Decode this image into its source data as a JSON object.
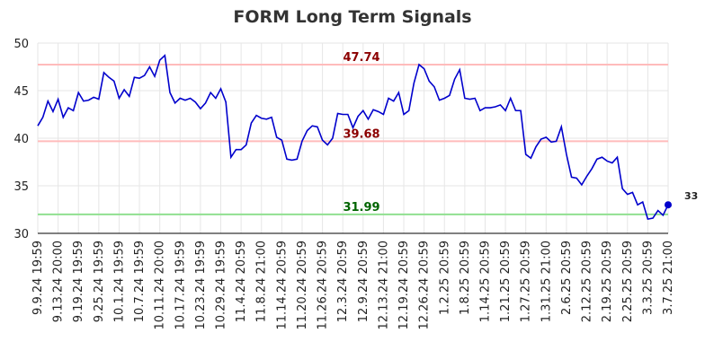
{
  "chart_data": {
    "type": "line",
    "title": "FORM Long Term Signals",
    "categories": [
      "9.9.24 19:59",
      null,
      null,
      null,
      "9.13.24 20:00",
      null,
      null,
      null,
      "9.19.24 19:59",
      null,
      null,
      null,
      "9.25.24 19:59",
      null,
      null,
      null,
      "10.1.24 19:59",
      null,
      null,
      null,
      "10.7.24 19:59",
      null,
      null,
      null,
      "10.11.24 20:00",
      null,
      null,
      null,
      "10.17.24 19:59",
      null,
      null,
      null,
      "10.23.24 19:59",
      null,
      null,
      null,
      "10.29.24 19:59",
      null,
      null,
      null,
      "11.4.24 20:59",
      null,
      null,
      null,
      "11.8.24 21:00",
      null,
      null,
      null,
      "11.14.24 20:59",
      null,
      null,
      null,
      "11.20.24 20:59",
      null,
      null,
      null,
      "11.26.24 20:59",
      null,
      null,
      null,
      "12.3.24 20:59",
      null,
      null,
      null,
      "12.9.24 20:59",
      null,
      null,
      null,
      "12.13.24 21:00",
      null,
      null,
      null,
      "12.19.24 20:59",
      null,
      null,
      null,
      "12.26.24 20:59",
      null,
      null,
      null,
      "1.2.25 20:59",
      null,
      null,
      null,
      "1.8.25 20:59",
      null,
      null,
      null,
      "1.14.25 20:59",
      null,
      null,
      null,
      "1.21.25 20:59",
      null,
      null,
      null,
      "1.27.25 20:59",
      null,
      null,
      null,
      "1.31.25 21:00",
      null,
      null,
      null,
      "2.6.25 20:59",
      null,
      null,
      null,
      "2.12.25 20:59",
      null,
      null,
      null,
      "2.19.25 20:59",
      null,
      null,
      null,
      "2.25.25 20:59",
      null,
      null,
      null,
      "3.3.25 20:59",
      null,
      null,
      null,
      "3.7.25 21:00"
    ],
    "series": [
      {
        "color": "#0000cc",
        "values": [
          41.3,
          42.2,
          43.9,
          42.8,
          44.1,
          42.2,
          43.2,
          42.9,
          44.8,
          43.9,
          44.0,
          44.3,
          44.1,
          46.9,
          46.4,
          46.0,
          44.2,
          45.1,
          44.4,
          46.4,
          46.3,
          46.6,
          47.5,
          46.5,
          48.2,
          48.7,
          44.8,
          43.7,
          44.2,
          44.0,
          44.2,
          43.8,
          43.1,
          43.7,
          44.8,
          44.2,
          45.2,
          43.8,
          38.0,
          38.8,
          38.8,
          39.3,
          41.6,
          42.4,
          42.1,
          42.0,
          42.2,
          40.1,
          39.8,
          37.8,
          37.7,
          37.8,
          39.7,
          40.8,
          41.3,
          41.2,
          39.8,
          39.3,
          40.0,
          42.6,
          42.5,
          42.5,
          41.1,
          42.3,
          42.9,
          42.0,
          43.0,
          42.8,
          42.5,
          44.2,
          43.9,
          44.8,
          42.5,
          42.9,
          45.8,
          47.74,
          47.3,
          46.0,
          45.4,
          44.0,
          44.2,
          44.5,
          46.2,
          47.2,
          44.2,
          44.1,
          44.2,
          42.9,
          43.2,
          43.2,
          43.3,
          43.5,
          42.9,
          44.2,
          42.9,
          42.9,
          38.3,
          37.9,
          39.1,
          39.9,
          40.1,
          39.6,
          39.68,
          41.2,
          38.3,
          35.9,
          35.8,
          35.1,
          36.0,
          36.8,
          37.8,
          38.0,
          37.6,
          37.4,
          38.0,
          34.7,
          34.1,
          34.3,
          33.0,
          33.3,
          31.5,
          31.6,
          32.4,
          31.9,
          33
        ]
      }
    ],
    "ylim": [
      30,
      50
    ],
    "yticks": [
      30,
      35,
      40,
      45,
      50
    ],
    "grid": true,
    "annotations": [
      {
        "value": 47.74,
        "color": "#ffbbbb",
        "text_color": "#8b0000"
      },
      {
        "value": 39.68,
        "color": "#ffbbbb",
        "text_color": "#8b0000"
      },
      {
        "value": 31.99,
        "color": "#90e090",
        "text_color": "#006400"
      }
    ]
  }
}
